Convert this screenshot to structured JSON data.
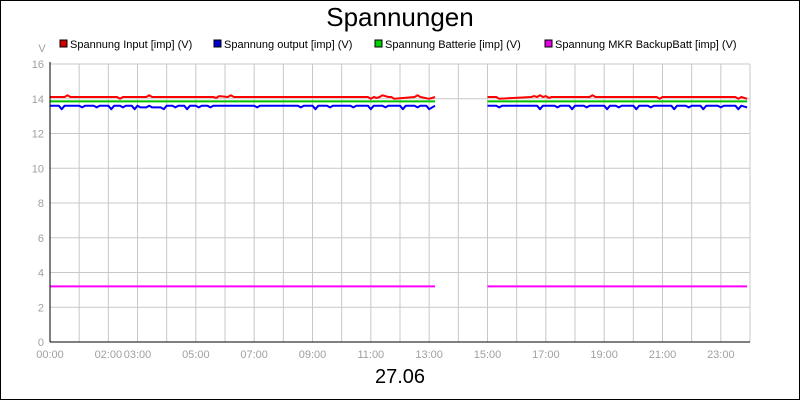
{
  "chart_data": {
    "type": "line",
    "title": "Spannungen",
    "xlabel": "27.06",
    "ylabel": "V",
    "ylim": [
      0,
      16
    ],
    "yticks": [
      0,
      2,
      4,
      6,
      8,
      10,
      12,
      14,
      16
    ],
    "xlim_hours": [
      0,
      24
    ],
    "xticks": [
      {
        "h": 0,
        "label": "00:00"
      },
      {
        "h": 2,
        "label": "02:00"
      },
      {
        "h": 3,
        "label": "03:00"
      },
      {
        "h": 5,
        "label": "05:00"
      },
      {
        "h": 7,
        "label": "07:00"
      },
      {
        "h": 9,
        "label": "09:00"
      },
      {
        "h": 11,
        "label": "11:00"
      },
      {
        "h": 13,
        "label": "13:00"
      },
      {
        "h": 15,
        "label": "15:00"
      },
      {
        "h": 17,
        "label": "17:00"
      },
      {
        "h": 19,
        "label": "19:00"
      },
      {
        "h": 21,
        "label": "21:00"
      },
      {
        "h": 23,
        "label": "23:00"
      }
    ],
    "grid": true,
    "legend": "top",
    "series": [
      {
        "name": "Spannung Input [imp] (V)",
        "color": "#ff0000",
        "marker_color": "#d00000",
        "segments": [
          {
            "x": [
              0.0,
              0.5,
              0.6,
              0.7,
              2.3,
              2.4,
              2.5,
              3.3,
              3.4,
              3.5,
              5.6,
              5.7,
              5.8,
              6.1,
              6.2,
              6.3,
              6.4,
              10.9,
              11.0,
              11.1,
              11.2,
              11.3,
              11.4,
              11.6,
              11.7,
              11.8,
              12.5,
              12.6,
              12.7,
              13.0,
              13.2
            ],
            "y": [
              14.1,
              14.1,
              14.2,
              14.1,
              14.1,
              14.0,
              14.1,
              14.1,
              14.2,
              14.1,
              14.1,
              14.05,
              14.15,
              14.1,
              14.2,
              14.1,
              14.1,
              14.1,
              14.0,
              14.1,
              14.05,
              14.1,
              14.2,
              14.1,
              14.1,
              14.0,
              14.1,
              14.2,
              14.1,
              14.0,
              14.1
            ]
          },
          {
            "x": [
              15.0,
              15.3,
              15.4,
              16.5,
              16.6,
              16.7,
              16.8,
              16.9,
              17.0,
              17.1,
              17.2,
              18.5,
              18.6,
              18.7,
              20.8,
              20.9,
              21.0,
              23.5,
              23.6,
              23.7,
              23.9
            ],
            "y": [
              14.1,
              14.1,
              14.0,
              14.1,
              14.15,
              14.1,
              14.2,
              14.1,
              14.15,
              14.05,
              14.1,
              14.1,
              14.2,
              14.1,
              14.1,
              14.0,
              14.1,
              14.1,
              14.0,
              14.1,
              14.0
            ]
          }
        ]
      },
      {
        "name": "Spannung output [imp] (V)",
        "color": "#0000ff",
        "marker_color": "#0000d0",
        "segments": [
          {
            "x": [
              0.0,
              0.3,
              0.4,
              0.5,
              1.0,
              1.1,
              1.2,
              1.5,
              1.6,
              1.7,
              2.0,
              2.1,
              2.2,
              2.4,
              2.5,
              2.6,
              2.8,
              2.9,
              3.0,
              3.1,
              3.3,
              3.4,
              3.5,
              3.8,
              3.9,
              4.0,
              4.2,
              4.3,
              4.4,
              4.6,
              4.7,
              4.8,
              5.0,
              5.1,
              5.2,
              5.4,
              5.5,
              5.6,
              7.0,
              7.1,
              7.2,
              8.5,
              8.6,
              8.7,
              9.0,
              9.1,
              9.2,
              9.5,
              9.6,
              9.7,
              10.3,
              10.4,
              10.5,
              10.9,
              11.0,
              11.1,
              11.4,
              11.5,
              11.6,
              12.0,
              12.1,
              12.2,
              12.5,
              12.6,
              12.7,
              12.9,
              13.0,
              13.2
            ],
            "y": [
              13.6,
              13.6,
              13.4,
              13.6,
              13.6,
              13.5,
              13.6,
              13.6,
              13.5,
              13.6,
              13.6,
              13.4,
              13.6,
              13.6,
              13.5,
              13.6,
              13.6,
              13.4,
              13.6,
              13.5,
              13.5,
              13.6,
              13.5,
              13.5,
              13.4,
              13.6,
              13.6,
              13.5,
              13.6,
              13.6,
              13.4,
              13.6,
              13.6,
              13.5,
              13.6,
              13.6,
              13.5,
              13.6,
              13.6,
              13.5,
              13.6,
              13.6,
              13.5,
              13.6,
              13.6,
              13.4,
              13.6,
              13.6,
              13.5,
              13.6,
              13.6,
              13.5,
              13.6,
              13.6,
              13.4,
              13.6,
              13.6,
              13.5,
              13.6,
              13.6,
              13.4,
              13.6,
              13.6,
              13.5,
              13.6,
              13.6,
              13.4,
              13.6
            ]
          },
          {
            "x": [
              15.0,
              15.3,
              15.4,
              15.5,
              16.7,
              16.8,
              16.9,
              17.3,
              17.4,
              17.5,
              17.8,
              17.9,
              18.0,
              18.3,
              18.4,
              18.5,
              19.0,
              19.1,
              19.2,
              19.4,
              19.5,
              19.6,
              20.0,
              20.1,
              20.2,
              20.5,
              20.6,
              20.7,
              21.3,
              21.4,
              21.5,
              21.8,
              21.9,
              22.0,
              22.3,
              22.4,
              22.5,
              22.9,
              23.0,
              23.1,
              23.5,
              23.6,
              23.7,
              23.9
            ],
            "y": [
              13.6,
              13.6,
              13.5,
              13.6,
              13.6,
              13.4,
              13.6,
              13.6,
              13.5,
              13.6,
              13.6,
              13.4,
              13.6,
              13.6,
              13.5,
              13.6,
              13.6,
              13.4,
              13.6,
              13.6,
              13.5,
              13.6,
              13.6,
              13.4,
              13.6,
              13.6,
              13.5,
              13.6,
              13.6,
              13.4,
              13.6,
              13.6,
              13.5,
              13.6,
              13.6,
              13.4,
              13.6,
              13.6,
              13.5,
              13.6,
              13.6,
              13.4,
              13.6,
              13.5
            ]
          }
        ]
      },
      {
        "name": "Spannung Batterie [imp] (V)",
        "color": "#00c000",
        "marker_color": "#00d000",
        "segments": [
          {
            "x": [
              0.0,
              13.2
            ],
            "y": [
              13.85,
              13.85
            ]
          },
          {
            "x": [
              15.0,
              23.9
            ],
            "y": [
              13.85,
              13.85
            ]
          }
        ]
      },
      {
        "name": "Spannung MKR BackupBatt [imp] (V)",
        "color": "#ff00ff",
        "marker_color": "#e000e0",
        "segments": [
          {
            "x": [
              0.0,
              13.2
            ],
            "y": [
              3.2,
              3.2
            ]
          },
          {
            "x": [
              15.0,
              23.9
            ],
            "y": [
              3.2,
              3.2
            ]
          }
        ]
      }
    ]
  }
}
